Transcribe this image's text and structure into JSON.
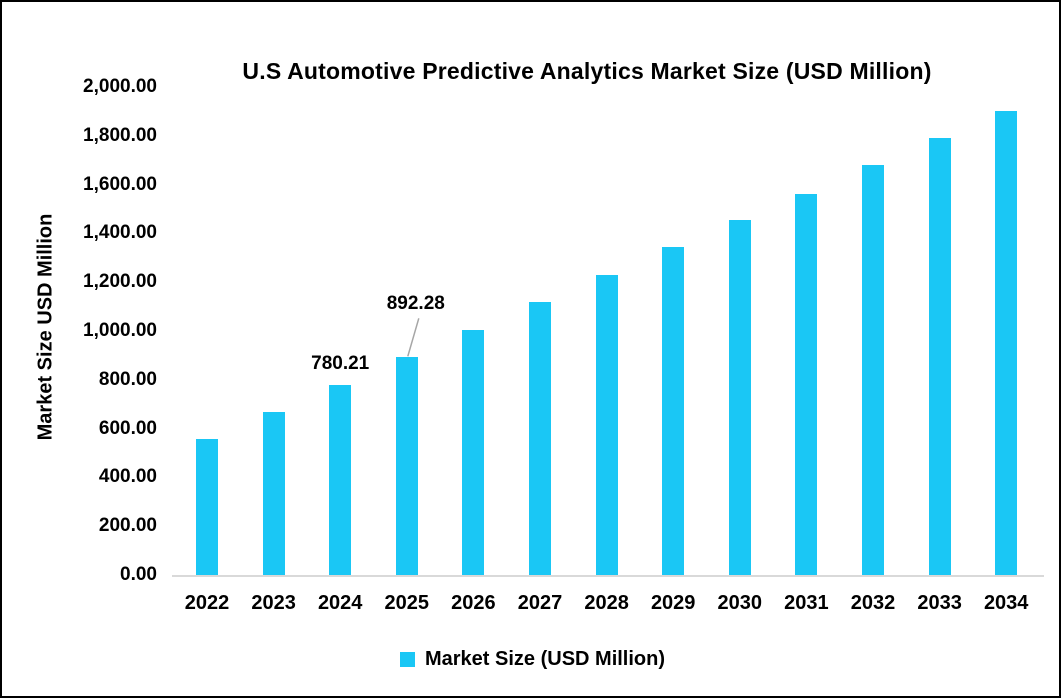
{
  "title": "U.S Automotive Predictive Analytics Market Size (USD Million)",
  "y_axis_title": "Market Size USD Million",
  "legend": {
    "label": "Market Size (USD Million)"
  },
  "colors": {
    "bar": "#1AC7F5",
    "axis_line": "#D9D9D9",
    "leader_line": "#A6A6A6",
    "text": "#000000"
  },
  "chart_data": {
    "type": "bar",
    "title": "U.S Automotive Predictive Analytics Market Size (USD Million)",
    "xlabel": "",
    "ylabel": "Market Size USD Million",
    "ylim": [
      0,
      2000
    ],
    "ytick_step": 200,
    "ytick_labels": [
      "0.00",
      "200.00",
      "400.00",
      "600.00",
      "800.00",
      "1,000.00",
      "1,200.00",
      "1,400.00",
      "1,600.00",
      "1,800.00",
      "2,000.00"
    ],
    "grid": false,
    "legend_entries": [
      "Market Size (USD Million)"
    ],
    "legend_position": "bottom-center",
    "categories": [
      "2022",
      "2023",
      "2024",
      "2025",
      "2026",
      "2027",
      "2028",
      "2029",
      "2030",
      "2031",
      "2032",
      "2033",
      "2034"
    ],
    "series": [
      {
        "name": "Market Size (USD Million)",
        "values": [
          557,
          668,
          780.21,
          892.28,
          1004,
          1119,
          1230,
          1344,
          1455,
          1561,
          1680,
          1791,
          1902
        ]
      }
    ],
    "data_labels": [
      {
        "category": "2024",
        "text": "780.21",
        "leader_line": false
      },
      {
        "category": "2025",
        "text": "892.28",
        "leader_line": true
      }
    ]
  }
}
